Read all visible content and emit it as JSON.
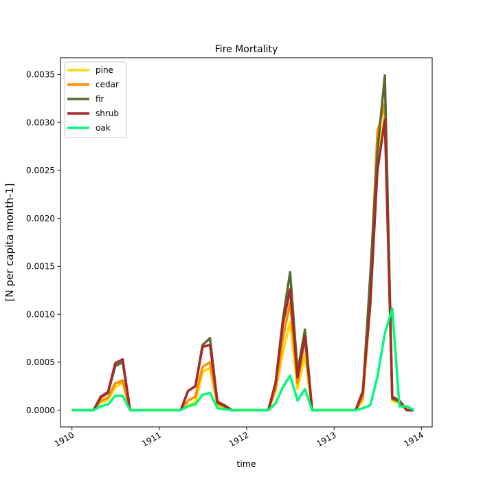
{
  "chart_data": {
    "type": "line",
    "title": "Fire Mortality",
    "xlabel": "time",
    "ylabel": "[N per capita month-1]",
    "xlim": [
      "1909-11-14",
      "1914-02-15"
    ],
    "ylim": [
      -0.000175,
      0.003675
    ],
    "x_ticks": [
      "1910-01-01",
      "1911-01-01",
      "1912-01-01",
      "1913-01-01",
      "1914-01-01"
    ],
    "x_tick_labels": [
      "1910",
      "1911",
      "1912",
      "1913",
      "1914"
    ],
    "y_ticks": [
      0,
      0.0005,
      0.001,
      0.0015,
      0.002,
      0.0025,
      0.003,
      0.0035
    ],
    "y_tick_labels": [
      "0.0000",
      "0.0005",
      "0.0010",
      "0.0015",
      "0.0020",
      "0.0025",
      "0.0030",
      "0.0035"
    ],
    "grid": false,
    "legend_position": "top-left",
    "x": [
      "1910-01-01",
      "1910-02-01",
      "1910-03-01",
      "1910-04-01",
      "1910-05-01",
      "1910-06-01",
      "1910-07-01",
      "1910-08-01",
      "1910-09-01",
      "1910-10-01",
      "1910-11-01",
      "1910-12-01",
      "1911-01-01",
      "1911-02-01",
      "1911-03-01",
      "1911-04-01",
      "1911-05-01",
      "1911-06-01",
      "1911-07-01",
      "1911-08-01",
      "1911-09-01",
      "1911-10-01",
      "1911-11-01",
      "1911-12-01",
      "1912-01-01",
      "1912-02-01",
      "1912-03-01",
      "1912-04-01",
      "1912-05-01",
      "1912-06-01",
      "1912-07-01",
      "1912-08-01",
      "1912-09-01",
      "1912-10-01",
      "1912-11-01",
      "1912-12-01",
      "1913-01-01",
      "1913-02-01",
      "1913-03-01",
      "1913-04-01",
      "1913-05-01",
      "1913-06-01",
      "1913-07-01",
      "1913-08-01",
      "1913-09-01",
      "1913-10-01",
      "1913-11-01",
      "1913-12-01"
    ],
    "series": [
      {
        "name": "pine",
        "color": "#ffd700",
        "values": [
          0,
          0,
          0,
          0,
          8e-05,
          0.00011,
          0.00024,
          0.00029,
          0,
          0,
          0,
          0,
          0,
          0,
          0,
          0,
          5e-05,
          8e-05,
          0.0004,
          0.00044,
          5e-05,
          3e-05,
          0,
          0,
          0,
          0,
          0,
          0,
          0.0002,
          0.0006,
          0.00092,
          0.00022,
          0.00058,
          0,
          0,
          0,
          0,
          0,
          0,
          0,
          0.0001,
          0.0011,
          0.0026,
          0.0031,
          0.0001,
          7e-05,
          0,
          0
        ]
      },
      {
        "name": "cedar",
        "color": "#ff8c00",
        "values": [
          0,
          0,
          0,
          0,
          0.0001,
          0.00013,
          0.00028,
          0.00031,
          0,
          0,
          0,
          0,
          0,
          0,
          0,
          0,
          0.0001,
          0.00014,
          0.00045,
          0.0005,
          7e-05,
          4e-05,
          0,
          0,
          0,
          0,
          0,
          0,
          0.00022,
          0.00075,
          0.00112,
          0.00028,
          0.00075,
          0,
          0,
          0,
          0,
          0,
          0,
          0,
          0.00014,
          0.0013,
          0.0029,
          0.0032,
          0.00012,
          9e-05,
          0,
          0
        ]
      },
      {
        "name": "fir",
        "color": "#556b2f",
        "values": [
          0,
          0,
          0,
          0,
          0.00013,
          0.00018,
          0.00046,
          0.0005,
          0,
          0,
          0,
          0,
          0,
          0,
          0,
          0,
          0.0002,
          0.00025,
          0.00068,
          0.00075,
          8e-05,
          4e-05,
          0,
          0,
          0,
          0,
          0,
          0,
          0.00028,
          0.00095,
          0.00144,
          0.0004,
          0.00084,
          0,
          0,
          0,
          0,
          0,
          0,
          0,
          0.00018,
          0.0014,
          0.0027,
          0.00349,
          0.00012,
          9e-05,
          0,
          0
        ]
      },
      {
        "name": "shrub",
        "color": "#a52a2a",
        "values": [
          0,
          0,
          0,
          0,
          0.00014,
          0.00019,
          0.00049,
          0.00053,
          0,
          0,
          0,
          0,
          0,
          0,
          0,
          0,
          0.0002,
          0.00025,
          0.00066,
          0.00068,
          9e-05,
          5e-05,
          0,
          0,
          0,
          0,
          0,
          0,
          0.00028,
          0.0009,
          0.00126,
          0.00034,
          0.00077,
          0,
          0,
          0,
          0,
          0,
          0,
          0,
          0.0002,
          0.0011,
          0.0025,
          0.00303,
          0.00014,
          0.0001,
          0,
          0
        ]
      },
      {
        "name": "oak",
        "color": "#00fa7a",
        "values": [
          0,
          0,
          0,
          0,
          4e-05,
          6e-05,
          0.00015,
          0.00015,
          0,
          0,
          0,
          0,
          0,
          0,
          0,
          0,
          4e-05,
          6e-05,
          0.00016,
          0.00018,
          2e-05,
          1e-05,
          0,
          0,
          0,
          0,
          0,
          0,
          7e-05,
          0.00024,
          0.00036,
          0.0001,
          0.00022,
          0,
          0,
          0,
          0,
          0,
          0,
          0,
          2e-05,
          5e-05,
          0.00035,
          0.0008,
          0.00106,
          4e-05,
          4e-05,
          0
        ]
      }
    ]
  }
}
